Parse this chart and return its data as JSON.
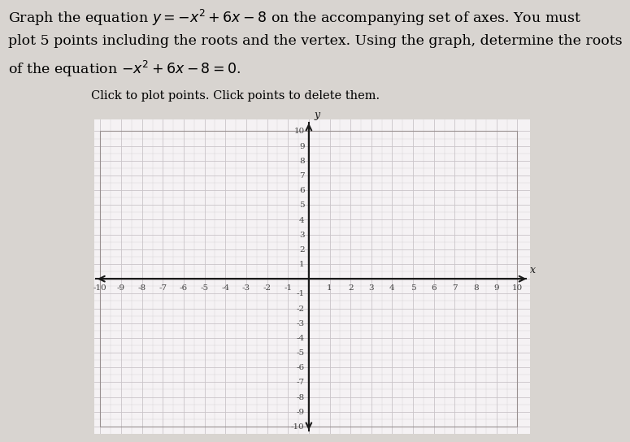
{
  "subtitle": "Click to plot points. Click points to delete them.",
  "xmin": -10,
  "xmax": 10,
  "ymin": -10,
  "ymax": 10,
  "xlabel": "x",
  "ylabel": "y",
  "grid_color": "#c9c4c8",
  "axis_color": "#1a1a1a",
  "page_bg_color": "#d8d4d0",
  "plot_bg_color": "#f5f2f4",
  "tick_color": "#444444",
  "tick_fontsize": 7.5,
  "subtitle_fontsize": 10.5,
  "title_line1": "Graph the equation $y = -x^2 + 6x - 8$ on the accompanying set of axes. You must",
  "title_line2": "plot 5 points including the roots and the vertex. Using the graph, determine the roots",
  "title_line3": "of the equation $-x^2 + 6x - 8 = 0$.",
  "title_fontsize": 12.5,
  "plot_border_color": "#999090"
}
